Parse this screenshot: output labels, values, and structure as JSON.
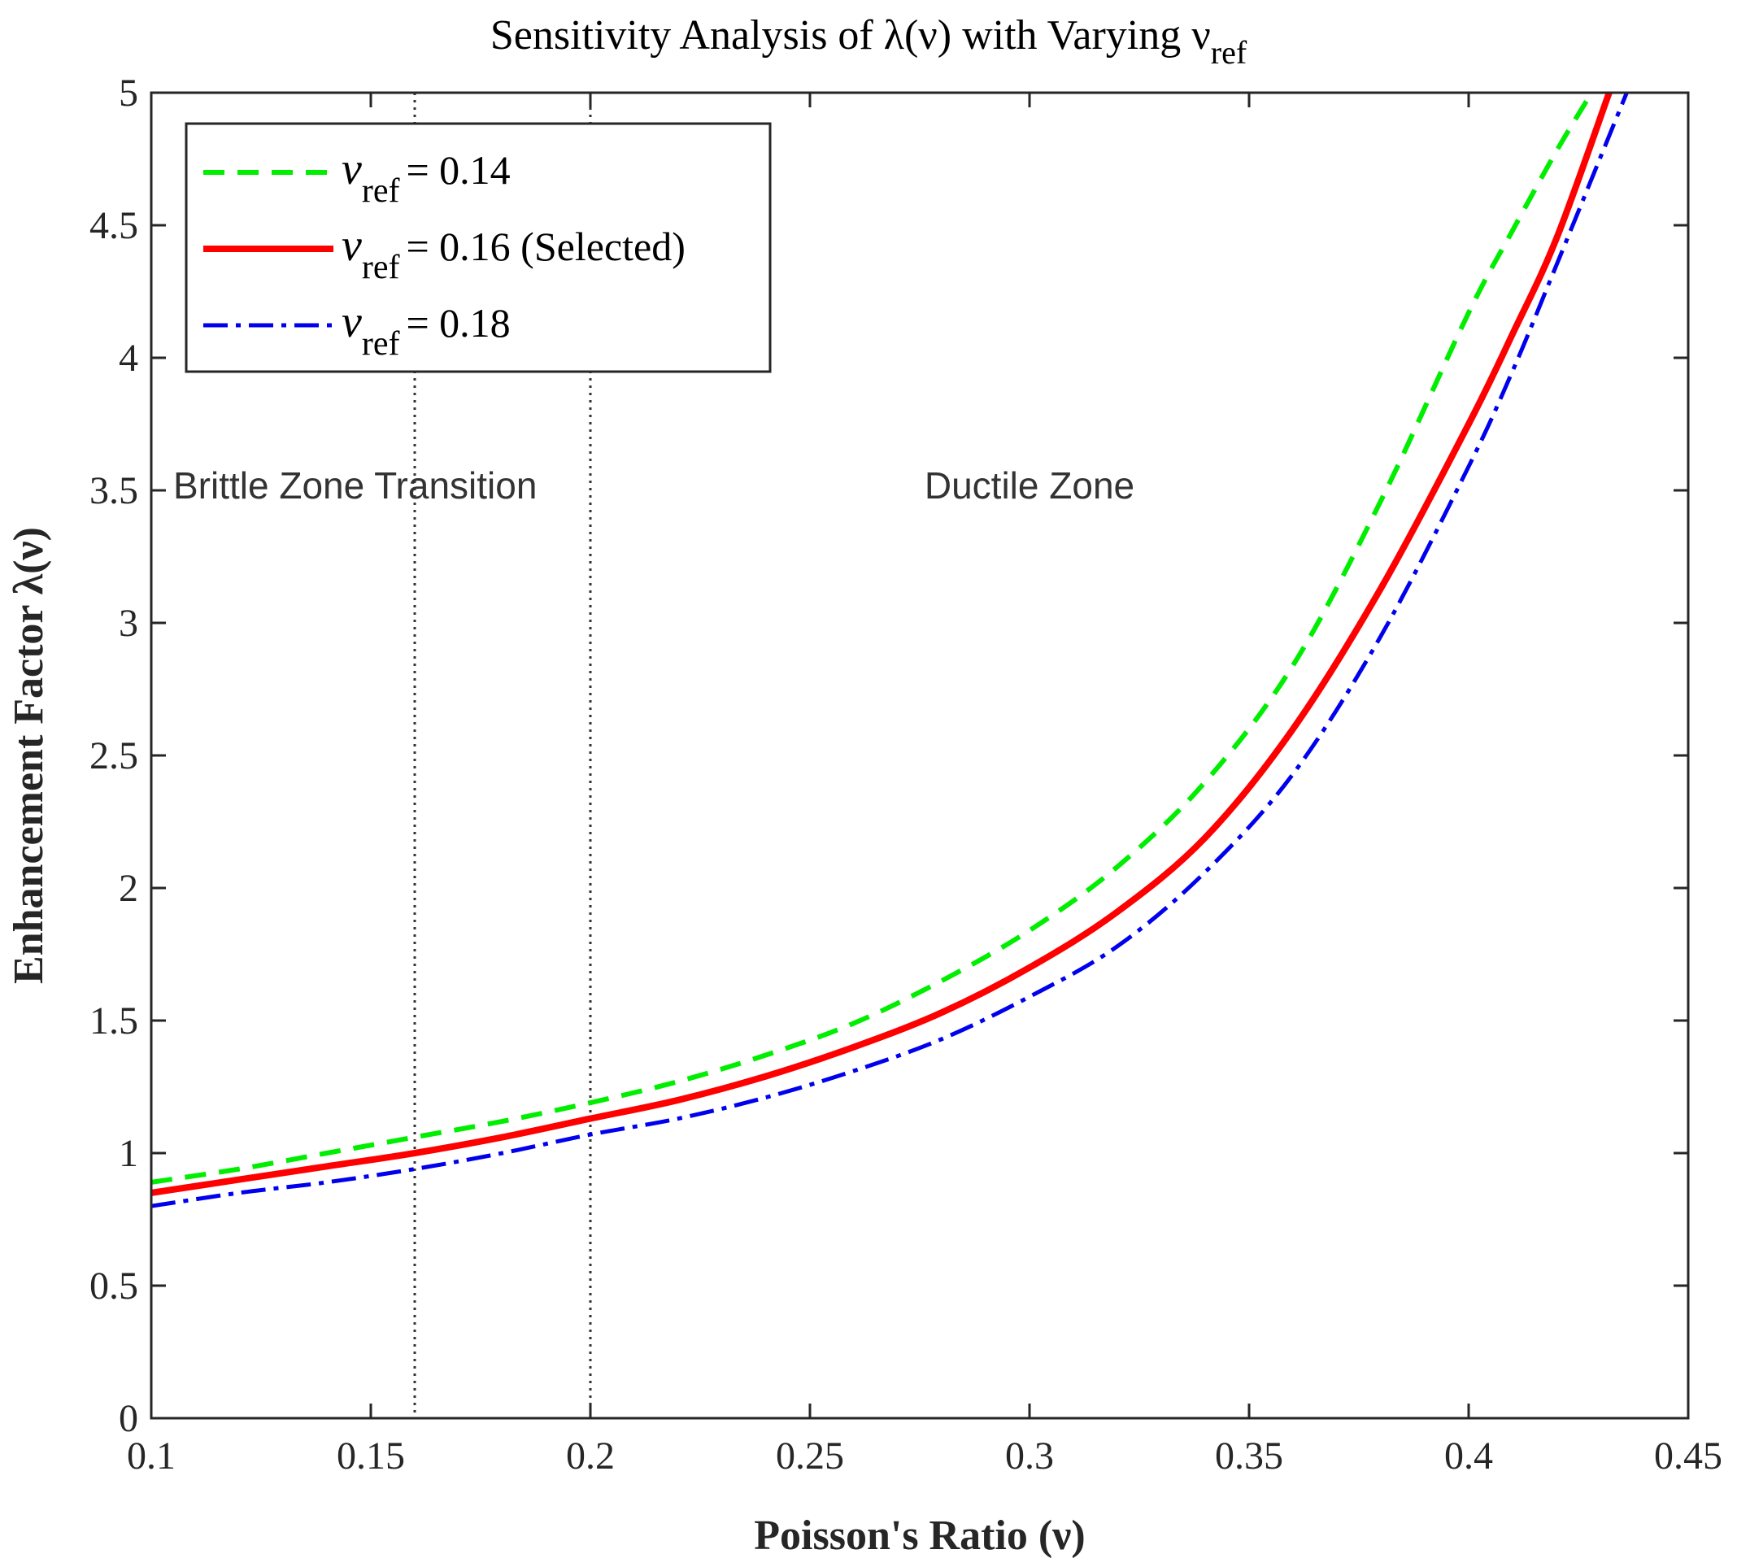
{
  "chart_data": {
    "type": "line",
    "title_prefix": "Sensitivity Analysis of λ(ν) with Varying ν",
    "title_subscript": "ref",
    "xlabel": "Poisson's Ratio (ν)",
    "ylabel": "Enhancement Factor λ(ν)",
    "xlim": [
      0.1,
      0.45
    ],
    "ylim": [
      0,
      5
    ],
    "x_ticks": [
      0.1,
      0.15,
      0.2,
      0.25,
      0.3,
      0.35,
      0.4,
      0.45
    ],
    "x_tick_labels": [
      "0.1",
      "0.15",
      "0.2",
      "0.25",
      "0.3",
      "0.35",
      "0.4",
      "0.45"
    ],
    "y_ticks": [
      0,
      0.5,
      1,
      1.5,
      2,
      2.5,
      3,
      3.5,
      4,
      4.5,
      5
    ],
    "y_tick_labels": [
      "0",
      "0.5",
      "1",
      "1.5",
      "2",
      "2.5",
      "3",
      "3.5",
      "4",
      "4.5",
      "5"
    ],
    "grid": false,
    "legend_position": "top-left",
    "vertical_lines": [
      0.16,
      0.2
    ],
    "annotations": [
      {
        "text": "Brittle Zone Transition",
        "x": 0.105,
        "y": 3.47
      },
      {
        "text": "Ductile Zone",
        "x": 0.3,
        "y": 3.47
      }
    ],
    "series": [
      {
        "name": "ν_ref = 0.14",
        "legend_symbol": "ν",
        "legend_sub": "ref",
        "legend_value": "= 0.14",
        "color": "#00ee00",
        "style": "dashed",
        "x": [
          0.1,
          0.12,
          0.14,
          0.16,
          0.18,
          0.2,
          0.22,
          0.24,
          0.26,
          0.28,
          0.3,
          0.32,
          0.34,
          0.36,
          0.38,
          0.4,
          0.41,
          0.42,
          0.428
        ],
        "values": [
          0.89,
          0.94,
          1.0,
          1.06,
          1.12,
          1.19,
          1.27,
          1.37,
          1.49,
          1.65,
          1.84,
          2.08,
          2.4,
          2.84,
          3.46,
          4.17,
          4.48,
          4.78,
          5.0
        ]
      },
      {
        "name": "ν_ref = 0.16 (Selected)",
        "legend_symbol": "ν",
        "legend_sub": "ref",
        "legend_value": "= 0.16 (Selected)",
        "color": "#ff0000",
        "style": "solid",
        "x": [
          0.1,
          0.12,
          0.14,
          0.16,
          0.18,
          0.2,
          0.22,
          0.24,
          0.26,
          0.28,
          0.3,
          0.32,
          0.34,
          0.36,
          0.38,
          0.4,
          0.41,
          0.42,
          0.432
        ],
        "values": [
          0.85,
          0.9,
          0.95,
          1.0,
          1.06,
          1.13,
          1.2,
          1.29,
          1.4,
          1.53,
          1.7,
          1.91,
          2.19,
          2.6,
          3.13,
          3.75,
          4.09,
          4.45,
          5.0
        ]
      },
      {
        "name": "ν_ref = 0.18",
        "legend_symbol": "ν",
        "legend_sub": "ref",
        "legend_value": "= 0.18",
        "color": "#0000ee",
        "style": "dashdot",
        "x": [
          0.1,
          0.12,
          0.14,
          0.16,
          0.18,
          0.2,
          0.22,
          0.24,
          0.26,
          0.28,
          0.3,
          0.32,
          0.34,
          0.36,
          0.38,
          0.4,
          0.41,
          0.42,
          0.436
        ],
        "values": [
          0.8,
          0.85,
          0.89,
          0.94,
          1.0,
          1.07,
          1.13,
          1.21,
          1.31,
          1.43,
          1.59,
          1.78,
          2.06,
          2.43,
          2.95,
          3.59,
          3.95,
          4.35,
          5.0
        ]
      }
    ]
  }
}
